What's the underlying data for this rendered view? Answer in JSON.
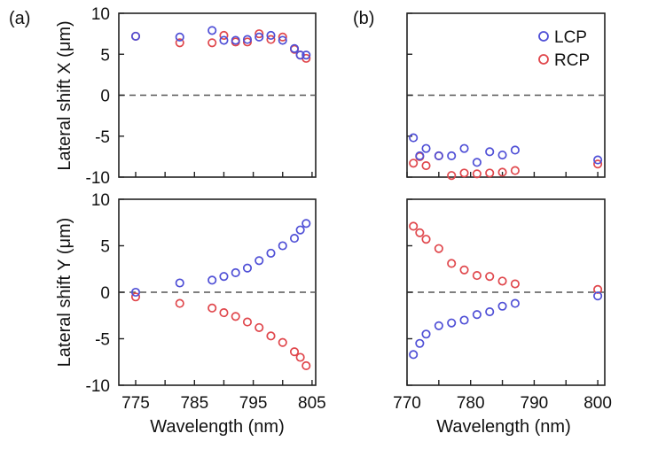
{
  "colors": {
    "LCP": "#4f4fd6",
    "RCP": "#e0474c"
  },
  "chart_data": [
    {
      "type": "scatter",
      "panel_label": "(a)",
      "title": "",
      "xlabel": "",
      "ylabel": "Lateral shift X (μm)",
      "xlim": [
        772,
        805
      ],
      "ylim": [
        -10,
        10
      ],
      "xticks": [
        "775",
        "785",
        "795",
        "805"
      ],
      "yticks": [
        "10",
        "5",
        "0",
        "-5",
        "-10"
      ],
      "x": [
        775,
        782.5,
        788,
        790,
        792,
        794,
        796,
        798,
        800,
        802,
        803,
        804
      ],
      "series": [
        {
          "name": "LCP",
          "values": [
            7.2,
            7.1,
            7.9,
            6.7,
            6.7,
            6.8,
            7.1,
            7.3,
            6.7,
            5.7,
            4.9,
            4.9
          ]
        },
        {
          "name": "RCP",
          "values": [
            7.2,
            6.4,
            6.4,
            7.3,
            6.5,
            6.5,
            7.5,
            6.8,
            7.1,
            5.6,
            4.9,
            4.5
          ]
        }
      ]
    },
    {
      "type": "scatter",
      "panel_label": "(b)",
      "title": "",
      "xlabel": "",
      "ylabel": "",
      "xlim": [
        770,
        801
      ],
      "ylim": [
        -10,
        10
      ],
      "xticks": [],
      "yticks": [],
      "legend": [
        "LCP",
        "RCP"
      ],
      "legend_position": "top-right",
      "x": [
        771,
        772,
        773,
        775,
        777,
        779,
        781,
        783,
        785,
        787,
        800
      ],
      "series": [
        {
          "name": "LCP",
          "values": [
            -5.2,
            -7.4,
            -6.5,
            -7.4,
            -7.4,
            -6.5,
            -8.2,
            -6.9,
            -7.3,
            -6.7,
            -7.9
          ]
        },
        {
          "name": "RCP",
          "values": [
            -8.3,
            -7.5,
            -8.6,
            -7.4,
            -9.8,
            -9.5,
            -9.6,
            -9.5,
            -9.4,
            -9.2,
            -8.4
          ]
        }
      ]
    },
    {
      "type": "scatter",
      "title": "",
      "xlabel": "Wavelength (nm)",
      "ylabel": "Lateral shift Y (μm)",
      "xlim": [
        772,
        805
      ],
      "ylim": [
        -10,
        10
      ],
      "xticks": [
        "775",
        "785",
        "795",
        "805"
      ],
      "yticks": [
        "10",
        "5",
        "0",
        "-5",
        "-10"
      ],
      "x": [
        775,
        782.5,
        788,
        790,
        792,
        794,
        796,
        798,
        800,
        802,
        803,
        804
      ],
      "series": [
        {
          "name": "LCP",
          "values": [
            0.0,
            1.0,
            1.3,
            1.7,
            2.1,
            2.6,
            3.4,
            4.2,
            5.0,
            5.8,
            6.7,
            7.4
          ]
        },
        {
          "name": "RCP",
          "values": [
            -0.5,
            -1.2,
            -1.7,
            -2.2,
            -2.6,
            -3.2,
            -3.8,
            -4.7,
            -5.4,
            -6.4,
            -7.0,
            -7.9
          ]
        }
      ]
    },
    {
      "type": "scatter",
      "title": "",
      "xlabel": "Wavelength (nm)",
      "ylabel": "",
      "xlim": [
        770,
        801
      ],
      "ylim": [
        -10,
        10
      ],
      "xticks": [
        "770",
        "780",
        "790",
        "800"
      ],
      "yticks": [],
      "x": [
        771,
        772,
        773,
        775,
        777,
        779,
        781,
        783,
        785,
        787,
        800
      ],
      "series": [
        {
          "name": "LCP",
          "values": [
            -6.7,
            -5.5,
            -4.5,
            -3.6,
            -3.3,
            -3.0,
            -2.4,
            -2.1,
            -1.5,
            -1.2,
            -0.4
          ]
        },
        {
          "name": "RCP",
          "values": [
            7.1,
            6.4,
            5.7,
            4.7,
            3.1,
            2.4,
            1.8,
            1.7,
            1.2,
            0.9,
            0.3
          ]
        }
      ]
    }
  ]
}
